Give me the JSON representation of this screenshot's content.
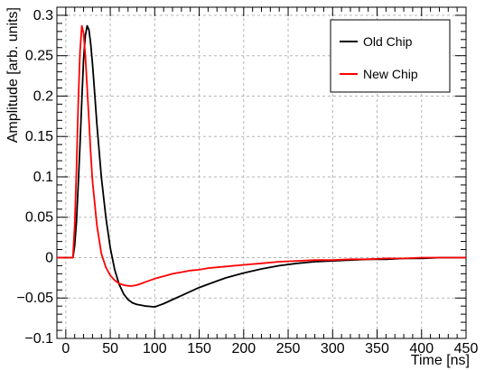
{
  "chart_data": {
    "type": "line",
    "title": "",
    "xlabel": "Time [ns]",
    "ylabel": "Amplitude [arb. units]",
    "xlim": [
      -10,
      450
    ],
    "ylim": [
      -0.1,
      0.31
    ],
    "grid": true,
    "legend_position": "top-right",
    "x_ticks": [
      0,
      50,
      100,
      150,
      200,
      250,
      300,
      350,
      400,
      450
    ],
    "x_tick_labels": [
      "0",
      "50",
      "100",
      "150",
      "200",
      "250",
      "300",
      "350",
      "400",
      "450"
    ],
    "y_ticks": [
      -0.1,
      -0.05,
      0,
      0.05,
      0.1,
      0.15,
      0.2,
      0.25,
      0.3
    ],
    "y_tick_labels": [
      "−0.1",
      "−0.05",
      "0",
      "0.05",
      "0.1",
      "0.15",
      "0.2",
      "0.25",
      "0.3"
    ],
    "series": [
      {
        "name": "Old Chip",
        "color": "#000000",
        "x": [
          -10,
          5,
          8,
          10,
          12,
          14,
          16,
          18,
          20,
          22,
          24,
          26,
          28,
          30,
          32,
          35,
          38,
          40,
          45,
          50,
          55,
          60,
          65,
          70,
          75,
          80,
          85,
          90,
          95,
          100,
          105,
          110,
          120,
          130,
          140,
          150,
          160,
          170,
          180,
          200,
          220,
          240,
          260,
          280,
          300,
          320,
          340,
          360,
          380,
          400,
          420,
          440,
          450
        ],
        "y": [
          0,
          0,
          0.0,
          0.015,
          0.045,
          0.09,
          0.14,
          0.195,
          0.245,
          0.275,
          0.287,
          0.282,
          0.265,
          0.24,
          0.21,
          0.165,
          0.125,
          0.1,
          0.05,
          0.012,
          -0.015,
          -0.033,
          -0.045,
          -0.052,
          -0.056,
          -0.058,
          -0.059,
          -0.06,
          -0.0605,
          -0.061,
          -0.059,
          -0.057,
          -0.052,
          -0.047,
          -0.042,
          -0.037,
          -0.033,
          -0.029,
          -0.025,
          -0.019,
          -0.014,
          -0.01,
          -0.007,
          -0.005,
          -0.004,
          -0.003,
          -0.002,
          -0.002,
          -0.001,
          -0.001,
          0,
          0,
          0
        ]
      },
      {
        "name": "New Chip",
        "color": "#ff0000",
        "x": [
          -10,
          5,
          8,
          10,
          12,
          14,
          16,
          18,
          20,
          22,
          24,
          26,
          28,
          30,
          35,
          40,
          45,
          50,
          55,
          60,
          65,
          70,
          75,
          80,
          85,
          90,
          100,
          110,
          120,
          130,
          140,
          150,
          160,
          180,
          200,
          220,
          240,
          260,
          280,
          300,
          320,
          340,
          360,
          380,
          400,
          420,
          440,
          450
        ],
        "y": [
          0,
          0,
          0.0,
          0.04,
          0.11,
          0.19,
          0.255,
          0.287,
          0.278,
          0.25,
          0.21,
          0.17,
          0.13,
          0.095,
          0.04,
          0.005,
          -0.012,
          -0.022,
          -0.028,
          -0.032,
          -0.034,
          -0.035,
          -0.035,
          -0.034,
          -0.032,
          -0.03,
          -0.026,
          -0.023,
          -0.02,
          -0.018,
          -0.016,
          -0.015,
          -0.013,
          -0.011,
          -0.009,
          -0.007,
          -0.005,
          -0.004,
          -0.003,
          -0.003,
          -0.002,
          -0.002,
          -0.001,
          -0.001,
          0,
          0,
          0,
          0
        ]
      }
    ]
  }
}
